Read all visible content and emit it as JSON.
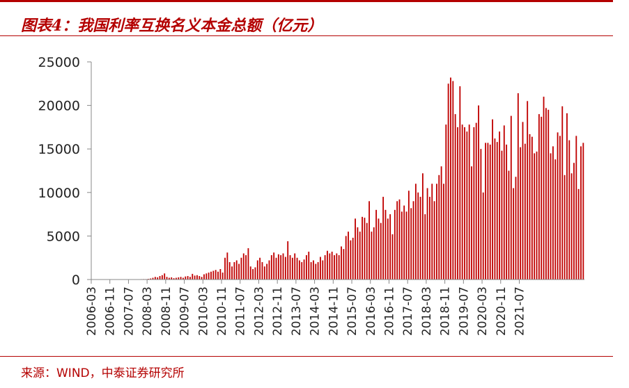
{
  "title": "图表4：我国利率互换名义本金总额（亿元）",
  "source": "来源：WIND，中泰证券研究所",
  "colors": {
    "accent": "#b40000",
    "bar": "#c00000"
  },
  "chart_data": {
    "type": "bar",
    "title": "图表4：我国利率互换名义本金总额（亿元）",
    "xlabel": "",
    "ylabel": "",
    "ylim": [
      0,
      25000
    ],
    "y_ticks": [
      "0",
      "5000",
      "10000",
      "15000",
      "20000",
      "25000"
    ],
    "x_tick_labels": [
      "2006-03",
      "2006-11",
      "2007-07",
      "2008-03",
      "2008-11",
      "2009-07",
      "2010-03",
      "2010-11",
      "2011-07",
      "2012-03",
      "2012-11",
      "2013-07",
      "2014-03",
      "2014-11",
      "2015-07",
      "2016-03",
      "2016-11",
      "2017-07",
      "2018-03",
      "2018-11",
      "2019-07",
      "2020-03",
      "2020-11",
      "2021-07"
    ],
    "grid": false,
    "legend": "none",
    "start_month": "2006-03",
    "series": [
      {
        "values": [
          5,
          8,
          10,
          12,
          10,
          15,
          12,
          18,
          20,
          15,
          18,
          20,
          22,
          25,
          30,
          28,
          30,
          32,
          35,
          40,
          38,
          45,
          50,
          48,
          80,
          120,
          200,
          300,
          250,
          400,
          500,
          700,
          300,
          200,
          250,
          150,
          200,
          250,
          300,
          200,
          350,
          400,
          300,
          650,
          450,
          500,
          400,
          300,
          600,
          700,
          800,
          900,
          1000,
          1100,
          900,
          1200,
          800,
          2500,
          3100,
          2000,
          1500,
          2000,
          2200,
          1800,
          2500,
          3000,
          2800,
          3600,
          1500,
          1200,
          1400,
          2200,
          2500,
          2000,
          1500,
          1800,
          2200,
          2800,
          3100,
          2500,
          2900,
          2800,
          3000,
          2600,
          4400,
          2800,
          2500,
          3000,
          2500,
          2200,
          2000,
          2300,
          2800,
          3200,
          2000,
          2200,
          1800,
          2000,
          2600,
          2200,
          2800,
          3300,
          3000,
          3200,
          2800,
          3000,
          2800,
          3800,
          3500,
          5000,
          5500,
          4500,
          4800,
          7000,
          6000,
          5500,
          7200,
          7100,
          6500,
          9000,
          5500,
          6000,
          8000,
          7000,
          6500,
          9500,
          8000,
          7000,
          7500,
          5200,
          8000,
          9000,
          9200,
          7800,
          8500,
          7800,
          10200,
          8200,
          9000,
          11000,
          10000,
          9500,
          12200,
          7500,
          10500,
          9500,
          11000,
          9000,
          11000,
          12000,
          13000,
          11000,
          17800,
          22500,
          23200,
          22800,
          19000,
          17500,
          22200,
          17800,
          17500,
          17000,
          17800,
          13000,
          17500,
          18000,
          20000,
          15000,
          10000,
          15700,
          15700,
          15500,
          18400,
          16200,
          15800,
          17000,
          14800,
          17700,
          15500,
          12500,
          18800,
          10500,
          11800,
          21400,
          15200,
          18100,
          15600,
          20500,
          16700,
          16400,
          14500,
          14700,
          19000,
          18700,
          21000,
          19700,
          19500,
          14500,
          15300,
          13800,
          16900,
          16500,
          19900,
          12000,
          19100,
          16000,
          12200,
          13400,
          16500,
          10400,
          15300,
          15700
        ]
      }
    ]
  }
}
